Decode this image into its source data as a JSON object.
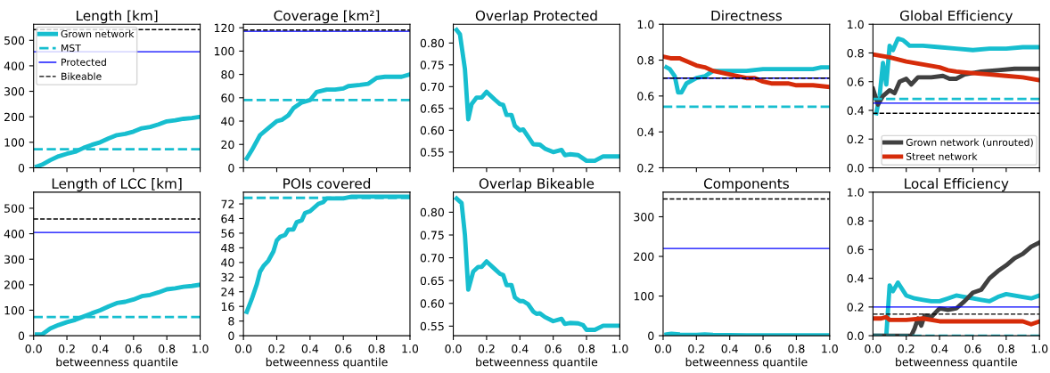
{
  "chart_data": [
    {
      "type": "line",
      "title": "Length [km]",
      "xlim": [
        0,
        1
      ],
      "xticks": [
        0,
        0.2,
        0.4,
        0.6,
        0.8,
        1
      ],
      "ylim": [
        0,
        563
      ],
      "yticks": [
        0,
        100,
        200,
        300,
        400,
        500
      ],
      "tick_labels": "y",
      "legend": "top left",
      "grid": false,
      "series": [
        {
          "name": "Grown network",
          "color": "#17becf",
          "x": [
            0.02,
            0.05,
            0.1,
            0.15,
            0.2,
            0.25,
            0.3,
            0.35,
            0.4,
            0.45,
            0.5,
            0.55,
            0.6,
            0.65,
            0.7,
            0.75,
            0.8,
            0.85,
            0.9,
            0.95,
            1.0
          ],
          "values": [
            5,
            12,
            30,
            45,
            55,
            63,
            78,
            90,
            100,
            115,
            128,
            133,
            142,
            155,
            160,
            170,
            182,
            186,
            192,
            195,
            200
          ]
        }
      ],
      "ref_lines": [
        {
          "axis": "y",
          "value": 73,
          "label": "MST",
          "color": "#17becf",
          "line_style": "dashed"
        },
        {
          "axis": "y",
          "value": 455,
          "label": "Protected",
          "color": "#0000ff",
          "line_style": "solid"
        },
        {
          "axis": "y",
          "value": 542,
          "label": "Bikeable",
          "color": "#000000",
          "line_style": "dashed"
        }
      ]
    },
    {
      "type": "line",
      "title": "Coverage [km²]",
      "xlim": [
        0,
        1
      ],
      "xticks": [
        0,
        0.2,
        0.4,
        0.6,
        0.8,
        1
      ],
      "ylim": [
        0,
        123
      ],
      "yticks": [
        0,
        20,
        40,
        60,
        80,
        100,
        120
      ],
      "tick_labels": "y",
      "grid": false,
      "series": [
        {
          "color": "#17becf",
          "x": [
            0.02,
            0.05,
            0.1,
            0.15,
            0.2,
            0.23,
            0.27,
            0.3,
            0.35,
            0.4,
            0.44,
            0.5,
            0.55,
            0.6,
            0.63,
            0.7,
            0.75,
            0.8,
            0.85,
            0.9,
            0.95,
            1.0
          ],
          "values": [
            8,
            15,
            28,
            34,
            40,
            41,
            45,
            51,
            56,
            58,
            65,
            67,
            67,
            68,
            70,
            71,
            72,
            77,
            78,
            78,
            78,
            80
          ]
        }
      ],
      "ref_lines": [
        {
          "axis": "y",
          "value": 58,
          "color": "#17becf",
          "line_style": "dashed"
        },
        {
          "axis": "y",
          "value": 117,
          "color": "#0000ff",
          "line_style": "solid"
        },
        {
          "axis": "y",
          "value": 118,
          "color": "#000000",
          "line_style": "dashed"
        }
      ]
    },
    {
      "type": "line",
      "title": "Overlap Protected",
      "xlim": [
        0,
        1
      ],
      "xticks": [
        0,
        0.2,
        0.4,
        0.6,
        0.8,
        1
      ],
      "ylim": [
        0.514,
        0.843
      ],
      "yticks": [
        0.55,
        {
          "value": 0.6,
          "label": "0.60"
        },
        0.65,
        {
          "value": 0.7,
          "label": "0.70"
        },
        0.75,
        {
          "value": 0.8,
          "label": "0.80"
        }
      ],
      "tick_labels": "y",
      "grid": false,
      "series": [
        {
          "color": "#17becf",
          "x": [
            0.02,
            0.04,
            0.07,
            0.09,
            0.11,
            0.14,
            0.17,
            0.2,
            0.25,
            0.28,
            0.3,
            0.32,
            0.35,
            0.37,
            0.4,
            0.42,
            0.45,
            0.48,
            0.52,
            0.55,
            0.6,
            0.65,
            0.67,
            0.7,
            0.75,
            0.8,
            0.85,
            0.9,
            1.0
          ],
          "values": [
            0.83,
            0.82,
            0.74,
            0.625,
            0.66,
            0.675,
            0.675,
            0.688,
            0.67,
            0.66,
            0.658,
            0.635,
            0.635,
            0.61,
            0.6,
            0.602,
            0.585,
            0.568,
            0.567,
            0.558,
            0.55,
            0.555,
            0.543,
            0.545,
            0.543,
            0.53,
            0.53,
            0.54,
            0.54
          ]
        }
      ]
    },
    {
      "type": "line",
      "title": "Directness",
      "xlim": [
        0,
        1
      ],
      "xticks": [
        0,
        0.2,
        0.4,
        0.6,
        0.8,
        1
      ],
      "ylim": [
        0.2,
        1.0
      ],
      "yticks": [
        0.2,
        0.4,
        0.6,
        0.8,
        {
          "value": 1,
          "label": "1.0"
        }
      ],
      "tick_labels": "y",
      "grid": false,
      "series": [
        {
          "color": "#17becf",
          "x": [
            0.02,
            0.04,
            0.07,
            0.09,
            0.11,
            0.14,
            0.2,
            0.25,
            0.3,
            0.4,
            0.5,
            0.6,
            0.7,
            0.8,
            0.9,
            0.95,
            1.0
          ],
          "values": [
            0.76,
            0.75,
            0.71,
            0.62,
            0.62,
            0.67,
            0.7,
            0.71,
            0.74,
            0.74,
            0.74,
            0.75,
            0.75,
            0.75,
            0.75,
            0.76,
            0.76
          ]
        },
        {
          "color": "#d62c0a",
          "x": [
            0.0,
            0.05,
            0.1,
            0.15,
            0.2,
            0.25,
            0.3,
            0.35,
            0.4,
            0.45,
            0.5,
            0.55,
            0.6,
            0.65,
            0.7,
            0.75,
            0.8,
            0.85,
            0.9,
            1.0
          ],
          "values": [
            0.82,
            0.81,
            0.81,
            0.79,
            0.77,
            0.76,
            0.74,
            0.73,
            0.72,
            0.71,
            0.7,
            0.7,
            0.68,
            0.67,
            0.67,
            0.67,
            0.66,
            0.66,
            0.66,
            0.65
          ]
        }
      ],
      "ref_lines": [
        {
          "axis": "y",
          "value": 0.54,
          "color": "#17becf",
          "line_style": "dashed"
        },
        {
          "axis": "y",
          "value": 0.7,
          "color": "#0000ff",
          "line_style": "solid"
        },
        {
          "axis": "y",
          "value": 0.7,
          "color": "#000000",
          "line_style": "dashed"
        }
      ]
    },
    {
      "type": "line",
      "title": "Global Efficiency",
      "xlim": [
        0,
        1
      ],
      "xticks": [
        0,
        0.2,
        0.4,
        0.6,
        0.8,
        1
      ],
      "ylim": [
        0.0,
        1.0
      ],
      "yticks": [
        {
          "value": 0,
          "label": "0.0"
        },
        0.2,
        0.4,
        0.6,
        0.8,
        {
          "value": 1,
          "label": "1.0"
        }
      ],
      "tick_labels": "y",
      "legend": "bottom right",
      "grid": false,
      "series": [
        {
          "color": "#17becf",
          "x": [
            0.02,
            0.04,
            0.06,
            0.08,
            0.1,
            0.12,
            0.15,
            0.18,
            0.22,
            0.3,
            0.4,
            0.5,
            0.6,
            0.7,
            0.8,
            0.9,
            1.0
          ],
          "values": [
            0.38,
            0.5,
            0.73,
            0.58,
            0.85,
            0.82,
            0.9,
            0.89,
            0.85,
            0.85,
            0.84,
            0.83,
            0.82,
            0.83,
            0.83,
            0.84,
            0.84
          ]
        },
        {
          "name": "Grown network (unrouted)",
          "color": "#404040",
          "x": [
            0.0,
            0.03,
            0.06,
            0.1,
            0.13,
            0.16,
            0.2,
            0.23,
            0.27,
            0.35,
            0.42,
            0.46,
            0.5,
            0.55,
            0.65,
            0.75,
            0.85,
            1.0
          ],
          "values": [
            0.55,
            0.44,
            0.5,
            0.54,
            0.52,
            0.6,
            0.62,
            0.58,
            0.63,
            0.63,
            0.64,
            0.62,
            0.62,
            0.65,
            0.67,
            0.68,
            0.69,
            0.69
          ]
        },
        {
          "name": "Street network",
          "color": "#d62c0a",
          "x": [
            0.0,
            0.1,
            0.2,
            0.3,
            0.4,
            0.45,
            0.5,
            0.6,
            0.7,
            0.8,
            0.9,
            1.0
          ],
          "values": [
            0.79,
            0.77,
            0.74,
            0.72,
            0.7,
            0.68,
            0.67,
            0.66,
            0.65,
            0.64,
            0.63,
            0.61
          ]
        }
      ],
      "ref_lines": [
        {
          "axis": "y",
          "value": 0.48,
          "color": "#17becf",
          "line_style": "dashed"
        },
        {
          "axis": "y",
          "value": 0.45,
          "color": "#0000ff",
          "line_style": "solid"
        },
        {
          "axis": "y",
          "value": 0.38,
          "color": "#000000",
          "line_style": "dashed"
        }
      ]
    },
    {
      "type": "line",
      "title": "Length of LCC [km]",
      "xlabel": "betweenness quantile",
      "xlim": [
        0,
        1
      ],
      "xticks": [
        {
          "value": 0,
          "label": "0.0"
        },
        {
          "value": 0.2,
          "label": "0.2"
        },
        {
          "value": 0.4,
          "label": "0.4"
        },
        {
          "value": 0.6,
          "label": "0.6"
        },
        {
          "value": 0.8,
          "label": "0.8"
        },
        {
          "value": 1,
          "label": "1.0"
        }
      ],
      "ylim": [
        0,
        563
      ],
      "yticks": [
        0,
        100,
        200,
        300,
        400,
        500
      ],
      "grid": false,
      "series": [
        {
          "color": "#17becf",
          "x": [
            0.02,
            0.05,
            0.1,
            0.15,
            0.2,
            0.25,
            0.3,
            0.35,
            0.4,
            0.45,
            0.5,
            0.55,
            0.6,
            0.65,
            0.7,
            0.75,
            0.8,
            0.85,
            0.9,
            0.95,
            1.0
          ],
          "values": [
            5,
            5,
            28,
            42,
            53,
            62,
            75,
            88,
            100,
            115,
            128,
            133,
            142,
            155,
            160,
            170,
            182,
            186,
            192,
            195,
            200
          ]
        }
      ],
      "ref_lines": [
        {
          "axis": "y",
          "value": 73,
          "color": "#17becf",
          "line_style": "dashed"
        },
        {
          "axis": "y",
          "value": 405,
          "color": "#0000ff",
          "line_style": "solid"
        },
        {
          "axis": "y",
          "value": 458,
          "color": "#000000",
          "line_style": "dashed"
        }
      ]
    },
    {
      "type": "line",
      "title": "POIs covered",
      "xlabel": "betweenness quantile",
      "xlim": [
        0,
        1
      ],
      "xticks": [
        {
          "value": 0,
          "label": "0.0"
        },
        {
          "value": 0.2,
          "label": "0.2"
        },
        {
          "value": 0.4,
          "label": "0.4"
        },
        {
          "value": 0.6,
          "label": "0.6"
        },
        {
          "value": 0.8,
          "label": "0.8"
        },
        {
          "value": 1,
          "label": "1.0"
        }
      ],
      "ylim": [
        0,
        78.4
      ],
      "yticks": [
        0,
        8,
        16,
        24,
        32,
        40,
        48,
        56,
        64,
        72
      ],
      "grid": false,
      "series": [
        {
          "color": "#17becf",
          "x": [
            0.02,
            0.05,
            0.08,
            0.1,
            0.12,
            0.15,
            0.18,
            0.2,
            0.22,
            0.25,
            0.27,
            0.3,
            0.32,
            0.35,
            0.37,
            0.4,
            0.45,
            0.48,
            0.5,
            0.55,
            0.6,
            0.65,
            0.8,
            1.0
          ],
          "values": [
            13,
            20,
            28,
            35,
            38,
            41,
            46,
            52,
            54,
            55,
            58,
            58,
            62,
            63,
            67,
            68,
            72,
            73,
            75,
            75,
            75,
            76,
            76,
            76
          ]
        }
      ],
      "ref_lines": [
        {
          "axis": "y",
          "value": 75.3,
          "color": "#17becf",
          "line_style": "dashed"
        }
      ]
    },
    {
      "type": "line",
      "title": "Overlap Bikeable",
      "xlabel": "betweenness quantile",
      "xlim": [
        0,
        1
      ],
      "xticks": [
        {
          "value": 0,
          "label": "0.0"
        },
        {
          "value": 0.2,
          "label": "0.2"
        },
        {
          "value": 0.4,
          "label": "0.4"
        },
        {
          "value": 0.6,
          "label": "0.6"
        },
        {
          "value": 0.8,
          "label": "0.8"
        },
        {
          "value": 1,
          "label": "1.0"
        }
      ],
      "ylim": [
        0.529,
        0.844
      ],
      "yticks": [
        0.55,
        {
          "value": 0.6,
          "label": "0.60"
        },
        0.65,
        {
          "value": 0.7,
          "label": "0.70"
        },
        0.75,
        {
          "value": 0.8,
          "label": "0.80"
        }
      ],
      "grid": false,
      "series": [
        {
          "color": "#17becf",
          "x": [
            0.02,
            0.05,
            0.07,
            0.09,
            0.12,
            0.15,
            0.17,
            0.2,
            0.25,
            0.28,
            0.3,
            0.32,
            0.35,
            0.37,
            0.4,
            0.42,
            0.45,
            0.48,
            0.5,
            0.52,
            0.55,
            0.6,
            0.65,
            0.67,
            0.7,
            0.75,
            0.78,
            0.8,
            0.85,
            0.9,
            1.0
          ],
          "values": [
            0.83,
            0.82,
            0.75,
            0.63,
            0.67,
            0.68,
            0.68,
            0.692,
            0.675,
            0.665,
            0.662,
            0.64,
            0.64,
            0.613,
            0.605,
            0.605,
            0.598,
            0.582,
            0.577,
            0.578,
            0.57,
            0.561,
            0.566,
            0.555,
            0.557,
            0.556,
            0.552,
            0.542,
            0.542,
            0.551,
            0.551
          ]
        }
      ]
    },
    {
      "type": "line",
      "title": "Components",
      "xlabel": "betweenness quantile",
      "xlim": [
        0,
        1
      ],
      "xticks": [
        {
          "value": 0,
          "label": "0.0"
        },
        {
          "value": 0.2,
          "label": "0.2"
        },
        {
          "value": 0.4,
          "label": "0.4"
        },
        {
          "value": 0.6,
          "label": "0.6"
        },
        {
          "value": 0.8,
          "label": "0.8"
        },
        {
          "value": 1,
          "label": "1.0"
        }
      ],
      "ylim": [
        0,
        362
      ],
      "yticks": [
        0,
        100,
        200,
        300
      ],
      "grid": false,
      "series": [
        {
          "color": "#17becf",
          "x": [
            0.02,
            0.05,
            0.1,
            0.2,
            0.25,
            0.3,
            0.5,
            1.0
          ],
          "values": [
            3,
            5,
            3,
            2,
            3,
            2,
            1,
            1
          ]
        }
      ],
      "ref_lines": [
        {
          "axis": "y",
          "value": 220,
          "color": "#0000ff",
          "line_style": "solid"
        },
        {
          "axis": "y",
          "value": 345,
          "color": "#000000",
          "line_style": "dashed"
        }
      ]
    },
    {
      "type": "line",
      "title": "Local Efficiency",
      "xlabel": "betweenness quantile",
      "xlim": [
        0,
        1
      ],
      "xticks": [
        {
          "value": 0,
          "label": "0.0"
        },
        {
          "value": 0.2,
          "label": "0.2"
        },
        {
          "value": 0.4,
          "label": "0.4"
        },
        {
          "value": 0.6,
          "label": "0.6"
        },
        {
          "value": 0.8,
          "label": "0.8"
        },
        {
          "value": 1,
          "label": "1.0"
        }
      ],
      "ylim": [
        0.0,
        1.0
      ],
      "yticks": [
        {
          "value": 0,
          "label": "0.0"
        },
        0.2,
        0.4,
        0.6,
        0.8,
        {
          "value": 1,
          "label": "1.0"
        }
      ],
      "grid": false,
      "series": [
        {
          "color": "#17becf",
          "x": [
            0.0,
            0.08,
            0.1,
            0.12,
            0.15,
            0.2,
            0.25,
            0.3,
            0.35,
            0.4,
            0.45,
            0.5,
            0.55,
            0.6,
            0.65,
            0.7,
            0.75,
            0.8,
            0.9,
            0.95,
            1.0
          ],
          "values": [
            0,
            0,
            0.35,
            0.31,
            0.37,
            0.28,
            0.26,
            0.25,
            0.24,
            0.24,
            0.26,
            0.28,
            0.27,
            0.26,
            0.25,
            0.24,
            0.27,
            0.29,
            0.27,
            0.26,
            0.28
          ]
        },
        {
          "color": "#404040",
          "x": [
            0.0,
            0.23,
            0.25,
            0.27,
            0.29,
            0.31,
            0.35,
            0.4,
            0.45,
            0.5,
            0.55,
            0.6,
            0.65,
            0.7,
            0.75,
            0.8,
            0.85,
            0.9,
            0.95,
            1.0
          ],
          "values": [
            0,
            0,
            0.05,
            0.12,
            0.07,
            0.14,
            0.13,
            0.19,
            0.18,
            0.19,
            0.24,
            0.3,
            0.32,
            0.4,
            0.45,
            0.49,
            0.54,
            0.57,
            0.62,
            0.65
          ]
        },
        {
          "color": "#d62c0a",
          "x": [
            0.0,
            0.05,
            0.08,
            0.1,
            0.2,
            0.3,
            0.4,
            0.5,
            0.6,
            0.7,
            0.8,
            0.9,
            0.95,
            1.0
          ],
          "values": [
            0.12,
            0.12,
            0.13,
            0.11,
            0.11,
            0.12,
            0.1,
            0.1,
            0.1,
            0.1,
            0.1,
            0.1,
            0.08,
            0.1
          ]
        }
      ],
      "ref_lines": [
        {
          "axis": "y",
          "value": 0.0,
          "color": "#17becf",
          "line_style": "dashed"
        },
        {
          "axis": "y",
          "value": 0.2,
          "color": "#0000ff",
          "line_style": "solid"
        },
        {
          "axis": "y",
          "value": 0.15,
          "color": "#000000",
          "line_style": "dashed"
        }
      ]
    }
  ]
}
